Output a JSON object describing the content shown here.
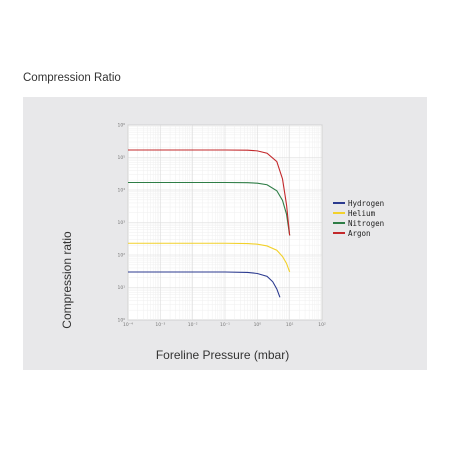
{
  "page": {
    "title": "Compression Ratio"
  },
  "chart_data": {
    "type": "line",
    "title": "",
    "xlabel": "Foreline Pressure (mbar)",
    "ylabel": "Compression ratio",
    "x_scale": "log",
    "y_scale": "log",
    "xlim": [
      0.0001,
      100
    ],
    "ylim": [
      1,
      1000000.0
    ],
    "x_ticks": [
      0.0001,
      0.001,
      0.01,
      0.1,
      1,
      10,
      100
    ],
    "x_tick_labels": [
      "10⁻⁴",
      "10⁻³",
      "10⁻²",
      "10⁻¹",
      "10⁰",
      "10¹",
      "10²"
    ],
    "y_ticks": [
      1,
      10,
      100,
      1000,
      10000,
      100000,
      1000000
    ],
    "y_tick_labels": [
      "10⁰",
      "10¹",
      "10²",
      "10³",
      "10⁴",
      "10⁵",
      "10⁶"
    ],
    "grid": true,
    "legend_position": "right",
    "series": [
      {
        "name": "Hydrogen",
        "color": "#2b3a8f",
        "x": [
          0.0001,
          0.001,
          0.01,
          0.1,
          0.5,
          1,
          2,
          3,
          4,
          5
        ],
        "y": [
          30,
          30,
          30,
          30,
          29,
          27,
          22,
          15,
          9,
          5
        ]
      },
      {
        "name": "Helium",
        "color": "#f2d12b",
        "x": [
          0.0001,
          0.001,
          0.01,
          0.1,
          0.5,
          1,
          2,
          4,
          6,
          8,
          10
        ],
        "y": [
          230,
          230,
          230,
          230,
          225,
          215,
          190,
          140,
          90,
          55,
          30
        ]
      },
      {
        "name": "Nitrogen",
        "color": "#2e7d46",
        "x": [
          0.0001,
          0.001,
          0.01,
          0.1,
          0.5,
          1,
          2,
          4,
          6,
          8,
          10
        ],
        "y": [
          17000,
          17000,
          17000,
          17000,
          16800,
          16200,
          14500,
          9500,
          4800,
          1800,
          400
        ]
      },
      {
        "name": "Argon",
        "color": "#c3282b",
        "x": [
          0.0001,
          0.001,
          0.01,
          0.1,
          0.5,
          1,
          2,
          4,
          6,
          8,
          10
        ],
        "y": [
          170000,
          170000,
          170000,
          170000,
          168000,
          160000,
          135000,
          75000,
          22000,
          3500,
          400
        ]
      }
    ]
  }
}
